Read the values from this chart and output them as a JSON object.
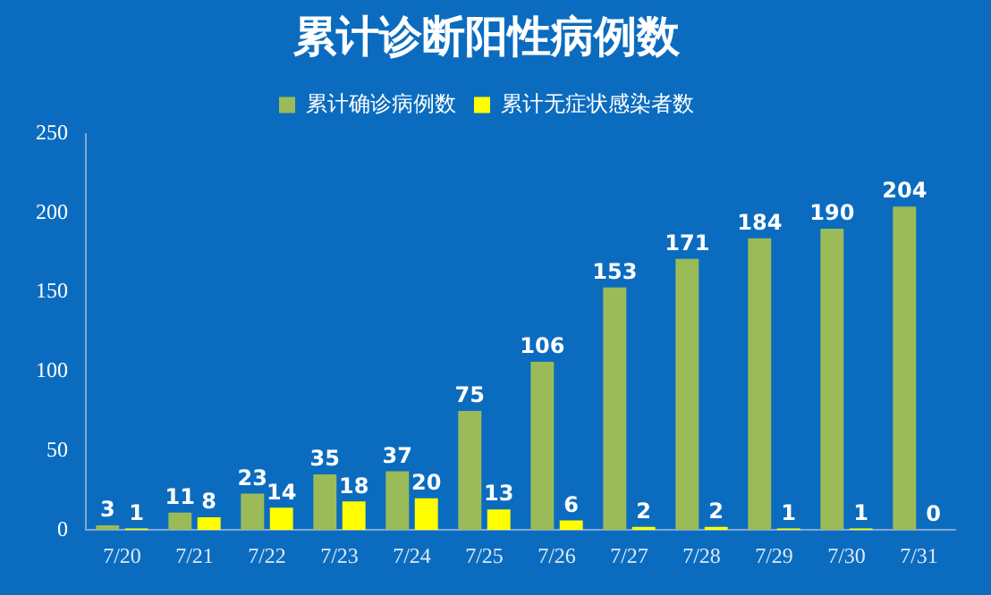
{
  "chart_data": {
    "type": "bar",
    "title": "累计诊断阳性病例数",
    "categories": [
      "7/20",
      "7/21",
      "7/22",
      "7/23",
      "7/24",
      "7/25",
      "7/26",
      "7/27",
      "7/28",
      "7/29",
      "7/30",
      "7/31"
    ],
    "series": [
      {
        "name": "累计确诊病例数",
        "color": "#9bbb59",
        "values": [
          3,
          11,
          23,
          35,
          37,
          75,
          106,
          153,
          171,
          184,
          190,
          204
        ]
      },
      {
        "name": "累计无症状感染者数",
        "color": "#ffff00",
        "values": [
          1,
          8,
          14,
          18,
          20,
          13,
          6,
          2,
          2,
          1,
          1,
          0
        ]
      }
    ],
    "ylim": [
      0,
      250
    ],
    "yticks": [
      0,
      50,
      100,
      150,
      200,
      250
    ],
    "grid": false,
    "legend": "top",
    "data_labels": true
  }
}
